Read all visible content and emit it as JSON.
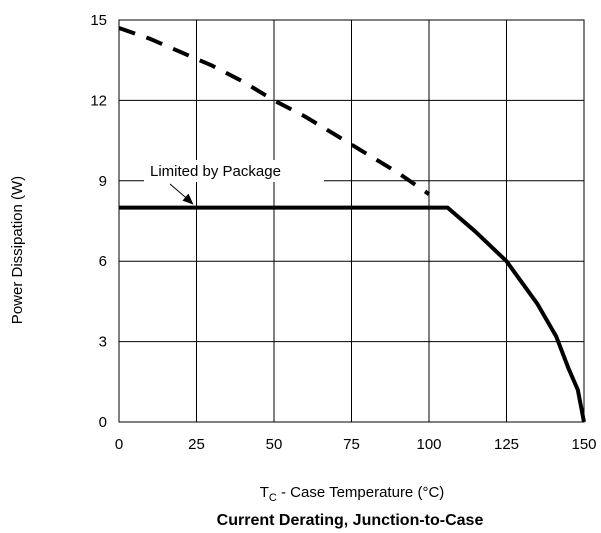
{
  "chart_data": {
    "type": "line",
    "title": "Current Derating, Junction-to-Case",
    "xlabel": {
      "prefix": "T",
      "subscript": "C",
      "suffix": " - Case Temperature (°C)"
    },
    "ylabel": "Power Dissipation (W)",
    "xlim": [
      0,
      150
    ],
    "ylim": [
      0,
      15
    ],
    "x_ticks": [
      0,
      25,
      50,
      75,
      100,
      125,
      150
    ],
    "y_ticks": [
      0,
      3,
      6,
      9,
      12,
      15
    ],
    "grid": true,
    "annotation": {
      "text": "Limited by Package",
      "points_to": [
        25,
        8
      ]
    },
    "series": [
      {
        "style": "dashed",
        "x": [
          0,
          10,
          20,
          30,
          40,
          50,
          60,
          70,
          80,
          90,
          100
        ],
        "y": [
          14.7,
          14.3,
          13.8,
          13.3,
          12.7,
          12.0,
          11.4,
          10.7,
          10.0,
          9.3,
          8.5
        ]
      },
      {
        "style": "solid",
        "x": [
          0,
          106,
          115,
          125,
          135,
          141,
          145,
          148,
          150
        ],
        "y": [
          8.0,
          8.0,
          7.1,
          6.0,
          4.4,
          3.2,
          2.0,
          1.2,
          0.0
        ]
      }
    ]
  }
}
